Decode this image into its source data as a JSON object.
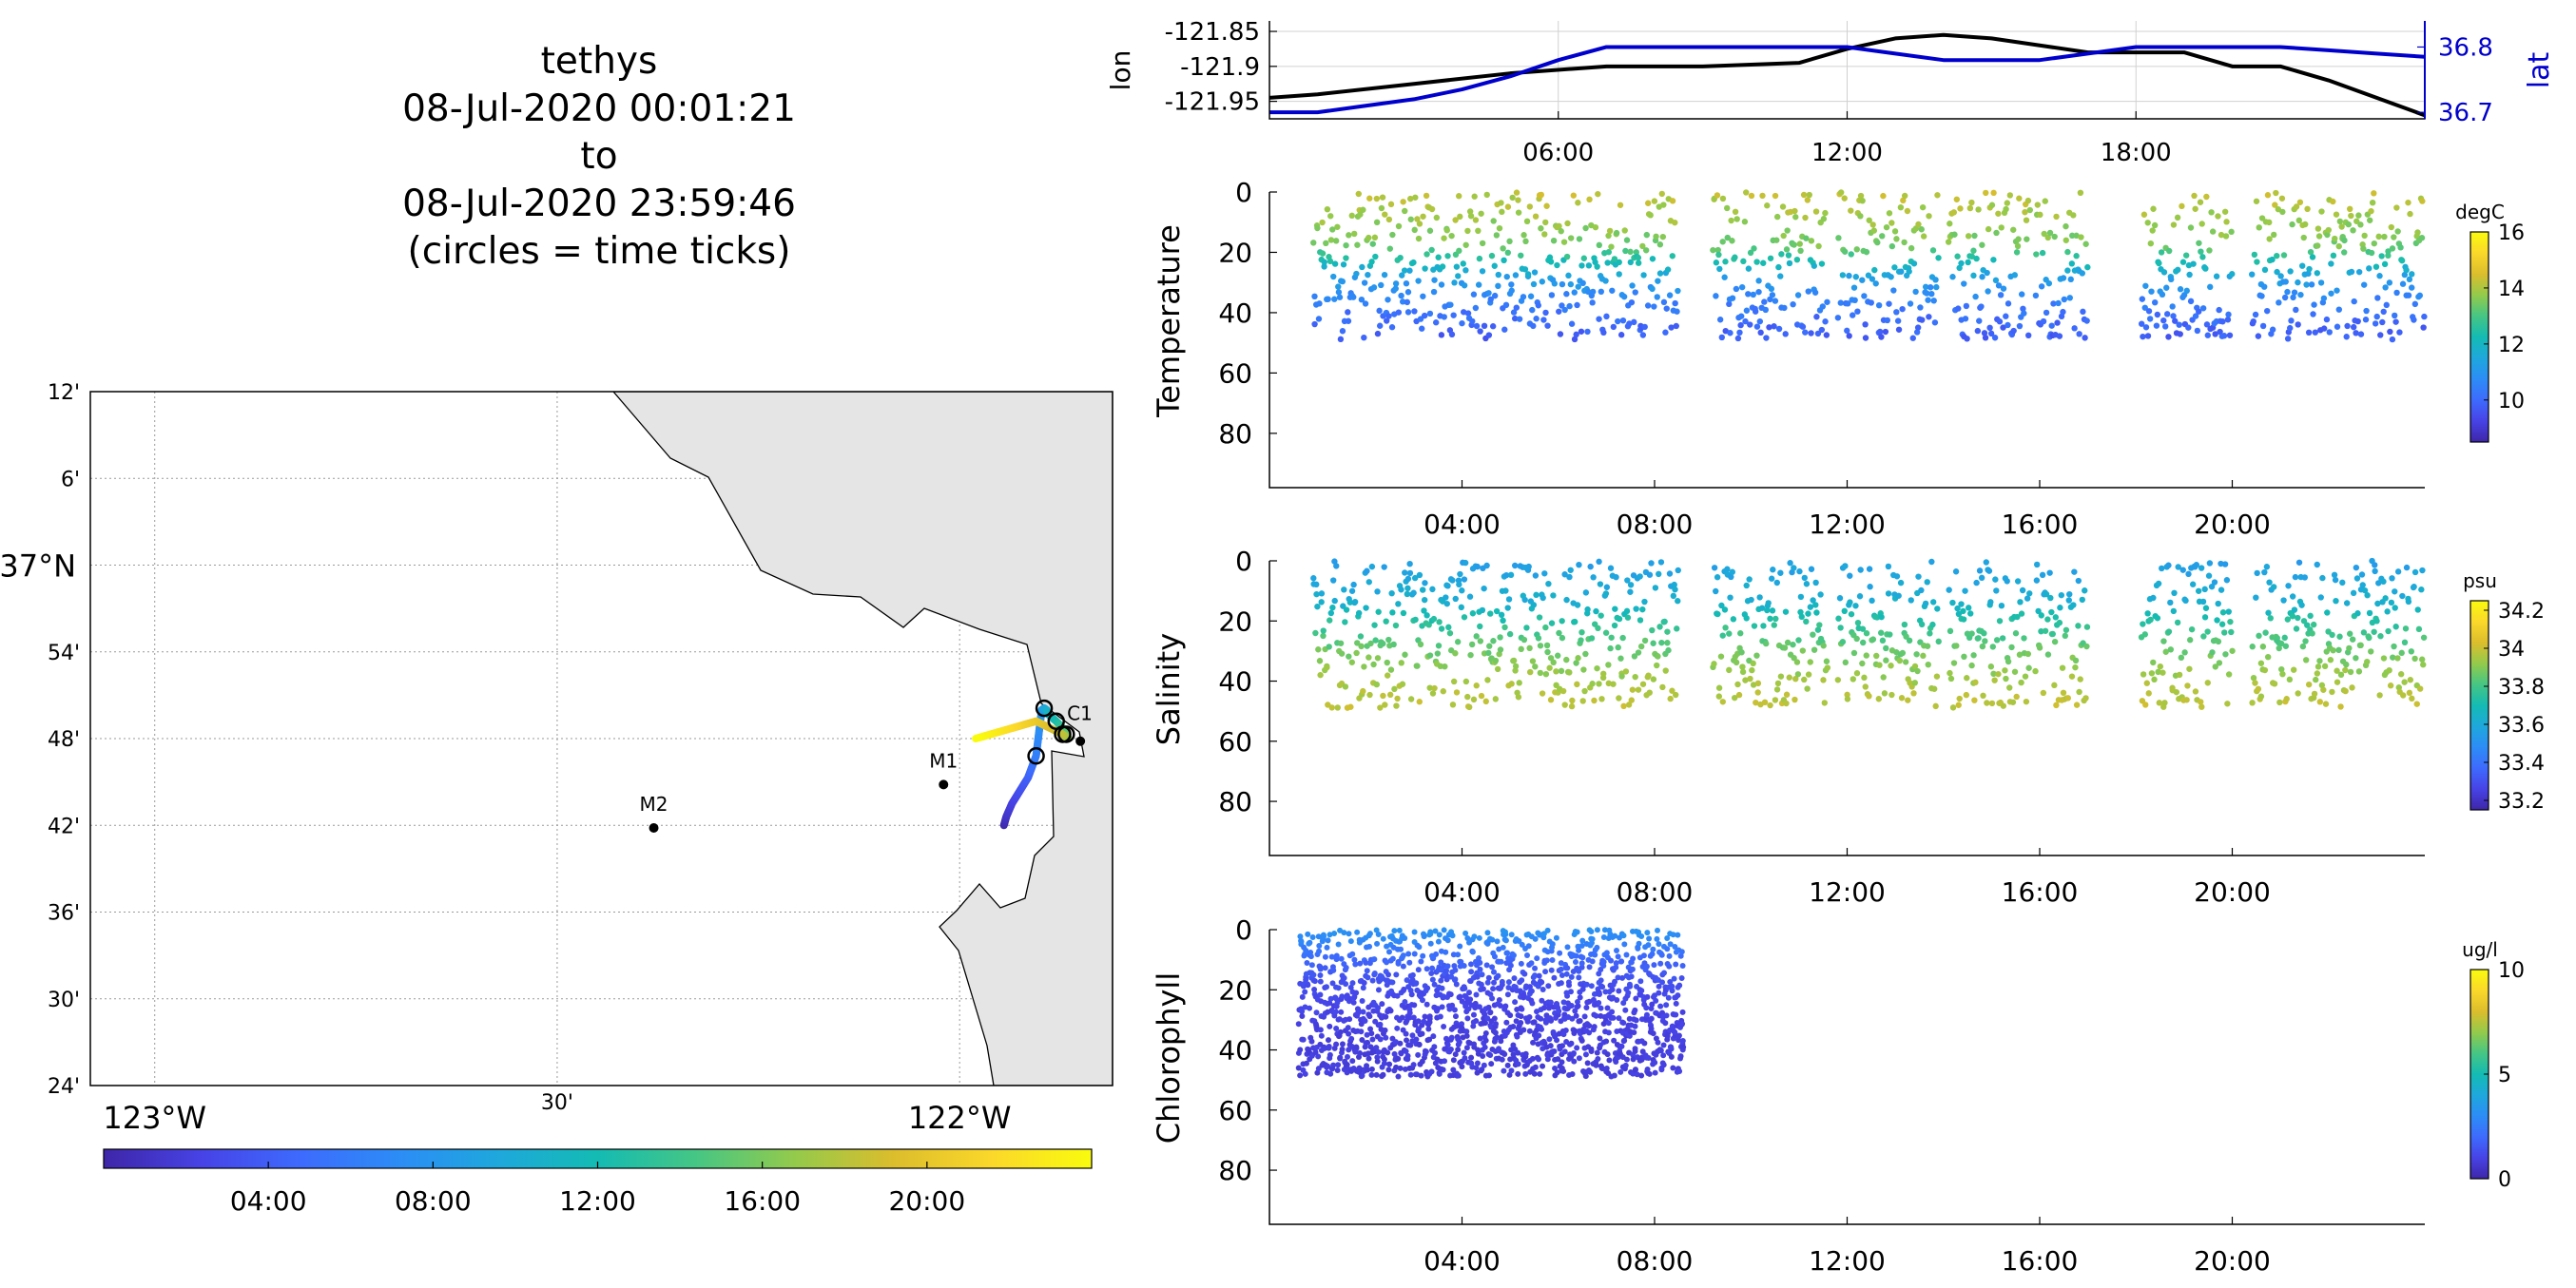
{
  "title_block": {
    "lines": [
      "tethys",
      "08-Jul-2020 00:01:21",
      "to",
      "08-Jul-2020 23:59:46",
      "(circles = time ticks)"
    ]
  },
  "colors": {
    "coast_land": "#e5e5e5",
    "lon_line": "#000000",
    "lat_line": "#0000cc",
    "grid": "#bdbdbd"
  },
  "colormap": [
    "#3e26a8",
    "#4743e6",
    "#3d6bfd",
    "#2c8df6",
    "#1ea8dc",
    "#14bbb3",
    "#46c684",
    "#94ca4b",
    "#dcbd2c",
    "#fbd82a",
    "#f9fb0e"
  ],
  "map": {
    "lat_ticks": [
      "12'",
      "6'",
      "37°N",
      "54'",
      "48'",
      "42'",
      "36'",
      "30'",
      "24'"
    ],
    "lon_ticks": [
      "123°W",
      "30'",
      "122°W"
    ],
    "stations": [
      {
        "name": "C1",
        "lon": -121.85,
        "lat": 36.797
      },
      {
        "name": "M1",
        "lon": -122.02,
        "lat": 36.747
      },
      {
        "name": "M2",
        "lon": -122.38,
        "lat": 36.697
      }
    ],
    "time_colorbar": {
      "ticks": [
        "04:00",
        "08:00",
        "12:00",
        "16:00",
        "20:00"
      ]
    },
    "track": {
      "hours": [
        0,
        1,
        2,
        3,
        4,
        6,
        8,
        9,
        10,
        11,
        12,
        14,
        16,
        18,
        20,
        24
      ],
      "lon": [
        -121.945,
        -121.942,
        -121.935,
        -121.925,
        -121.915,
        -121.905,
        -121.898,
        -121.895,
        -121.892,
        -121.89,
        -121.88,
        -121.87,
        -121.865,
        -121.872,
        -121.905,
        -121.98
      ],
      "lat": [
        36.7,
        36.71,
        36.725,
        36.74,
        36.755,
        36.78,
        36.833,
        36.835,
        36.833,
        36.828,
        36.82,
        36.81,
        36.8,
        36.805,
        36.82,
        36.8
      ]
    }
  },
  "chart_data": [
    {
      "type": "line",
      "title": "",
      "ylabel": "lon",
      "y2label": "lat",
      "x_ticks": [
        "06:00",
        "12:00",
        "18:00"
      ],
      "ylim": [
        -121.975,
        -121.835
      ],
      "yticks": [
        -121.85,
        -121.9,
        -121.95
      ],
      "y2lim": [
        36.69,
        36.84
      ],
      "y2ticks": [
        36.8,
        36.7
      ],
      "series": [
        {
          "hours": [
            0,
            1,
            3,
            5,
            7,
            9,
            11,
            12,
            13,
            14,
            15,
            16,
            17,
            18,
            19,
            20,
            21,
            22,
            23,
            24
          ],
          "values": [
            -121.945,
            -121.94,
            -121.925,
            -121.91,
            -121.9,
            -121.9,
            -121.895,
            -121.875,
            -121.86,
            -121.855,
            -121.86,
            -121.87,
            -121.88,
            -121.88,
            -121.88,
            -121.9,
            -121.9,
            -121.92,
            -121.945,
            -121.97
          ]
        },
        {
          "hours": [
            0,
            1,
            2,
            3,
            4,
            5,
            6,
            7,
            8,
            9,
            10,
            11,
            12,
            13,
            14,
            15,
            16,
            17,
            18,
            19,
            20,
            21,
            22,
            23,
            24
          ],
          "values": [
            36.7,
            36.7,
            36.71,
            36.72,
            36.735,
            36.755,
            36.78,
            36.8,
            36.8,
            36.8,
            36.8,
            36.8,
            36.8,
            36.79,
            36.78,
            36.78,
            36.78,
            36.79,
            36.8,
            36.8,
            36.8,
            36.8,
            36.795,
            36.79,
            36.785
          ]
        }
      ]
    },
    {
      "type": "scatter",
      "ylabel": "Temperature",
      "units": "degC",
      "x_ticks": [
        "04:00",
        "08:00",
        "12:00",
        "16:00",
        "20:00"
      ],
      "yticks": [
        0,
        20,
        40,
        60,
        80
      ],
      "ylim": [
        0,
        98
      ],
      "clim": [
        8.5,
        16
      ],
      "cticks": [
        16,
        14,
        12,
        10
      ],
      "segments": [
        [
          0.9,
          8.5
        ],
        [
          9.2,
          11.6
        ],
        [
          11.8,
          13.9
        ],
        [
          14.1,
          15.8
        ],
        [
          15.9,
          17.0
        ],
        [
          18.1,
          20.0
        ],
        [
          20.4,
          24.0
        ]
      ],
      "profile": {
        "surface": 14.2,
        "deep": 9.2,
        "mixed_depth": 18,
        "scale": 15
      }
    },
    {
      "type": "scatter",
      "ylabel": "Salinity",
      "units": "psu",
      "x_ticks": [
        "04:00",
        "08:00",
        "12:00",
        "16:00",
        "20:00"
      ],
      "yticks": [
        0,
        20,
        40,
        60,
        80
      ],
      "ylim": [
        0,
        98
      ],
      "clim": [
        33.15,
        34.25
      ],
      "cticks": [
        34.2,
        34,
        33.8,
        33.6,
        33.4,
        33.2
      ],
      "segments": [
        [
          0.9,
          8.5
        ],
        [
          9.2,
          11.6
        ],
        [
          11.8,
          13.9
        ],
        [
          14.1,
          15.8
        ],
        [
          15.9,
          17.0
        ],
        [
          18.1,
          20.0
        ],
        [
          20.4,
          24.0
        ]
      ],
      "profile": {
        "surface": 33.55,
        "deep": 34.08,
        "mixed_depth": 14,
        "scale": 22
      }
    },
    {
      "type": "scatter",
      "ylabel": "Chlorophyll",
      "units": "ug/l",
      "x_ticks": [
        "04:00",
        "08:00",
        "12:00",
        "16:00",
        "20:00"
      ],
      "yticks": [
        0,
        20,
        40,
        60,
        80
      ],
      "ylim": [
        0,
        98
      ],
      "clim": [
        0,
        10
      ],
      "cticks": [
        10,
        5,
        0
      ],
      "segments": [
        [
          0.6,
          8.6
        ]
      ],
      "profile": {
        "surface": 3.2,
        "deep": 0.8,
        "mixed_depth": 4,
        "scale": 10
      }
    }
  ]
}
